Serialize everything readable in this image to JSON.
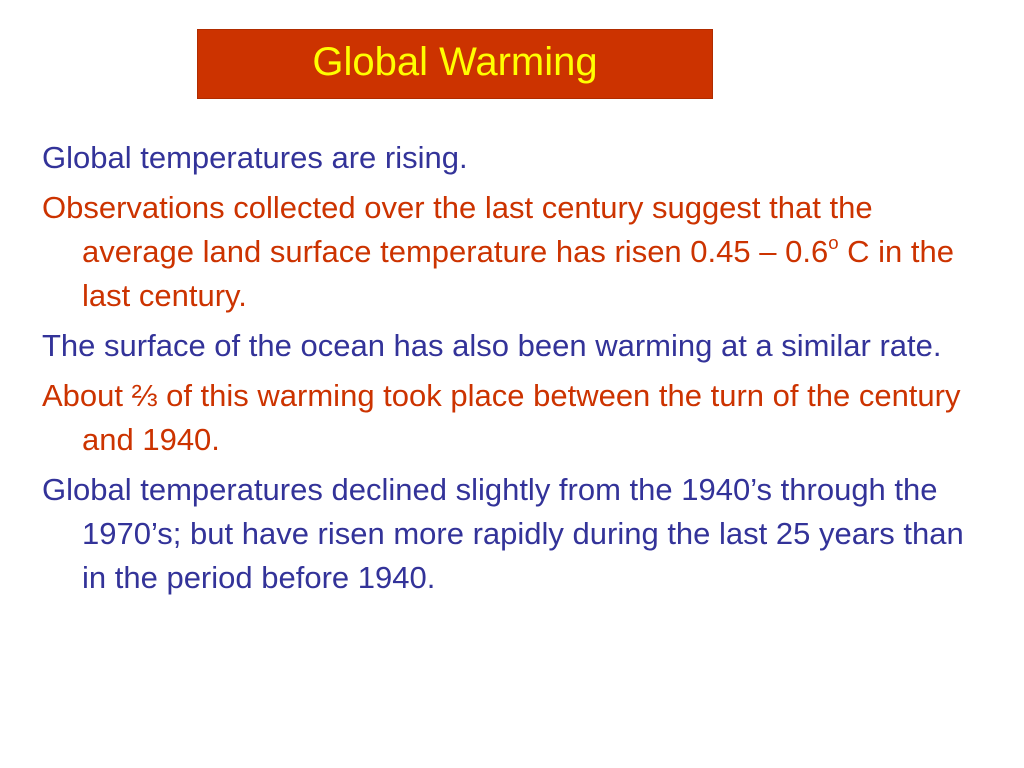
{
  "slide": {
    "title": "Global Warming",
    "colors": {
      "title_bg": "#cc3300",
      "title_text": "#ffff00",
      "blue_text": "#333399",
      "red_text": "#cc3300"
    },
    "paragraphs": [
      {
        "color": "blue",
        "text": "Global temperatures are rising."
      },
      {
        "color": "red",
        "text_before": "Observations collected over the last century suggest that the average land surface temperature has risen 0.45 – 0.6",
        "superscript": "o",
        "text_after": " C in the last century."
      },
      {
        "color": "blue",
        "text": "The surface of the ocean has also been warming at a similar rate."
      },
      {
        "color": "red",
        "text": "About ⅔ of this warming took place between the turn of the century and 1940."
      },
      {
        "color": "blue",
        "text": "Global temperatures declined slightly from the 1940’s through the 1970’s; but have risen more rapidly during the last 25 years than in the period before 1940."
      }
    ]
  }
}
